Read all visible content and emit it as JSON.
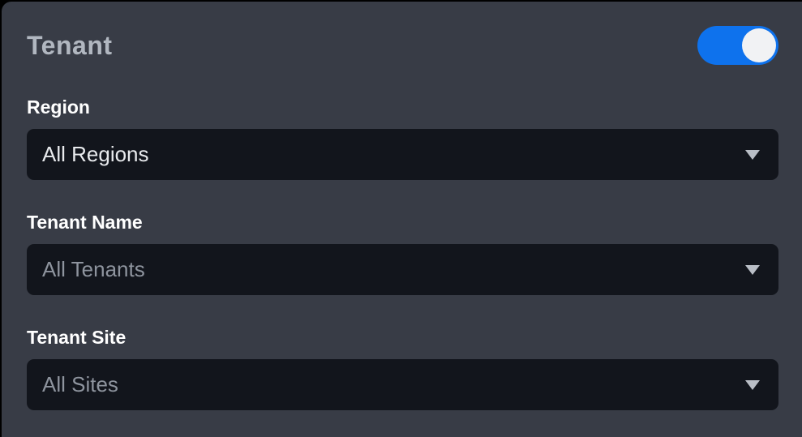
{
  "panel": {
    "title": "Tenant",
    "toggle": {
      "state": "on"
    },
    "fields": [
      {
        "label": "Region",
        "value": "All Regions",
        "muted": false
      },
      {
        "label": "Tenant Name",
        "value": "All Tenants",
        "muted": true
      },
      {
        "label": "Tenant Site",
        "value": "All Sites",
        "muted": true
      }
    ],
    "icons": {
      "dropdown": "chevron-down-icon"
    },
    "colors": {
      "page_background": "#000000",
      "panel_background": "#383c46",
      "field_background": "#12151c",
      "title_text": "#b1b7c0",
      "label_text": "#ffffff",
      "value_text": "#e8eaed",
      "muted_value_text": "#8e949e",
      "toggle_on": "#0e72ed",
      "toggle_knob": "#f1f2f4",
      "chevron": "#b9bec6"
    }
  }
}
